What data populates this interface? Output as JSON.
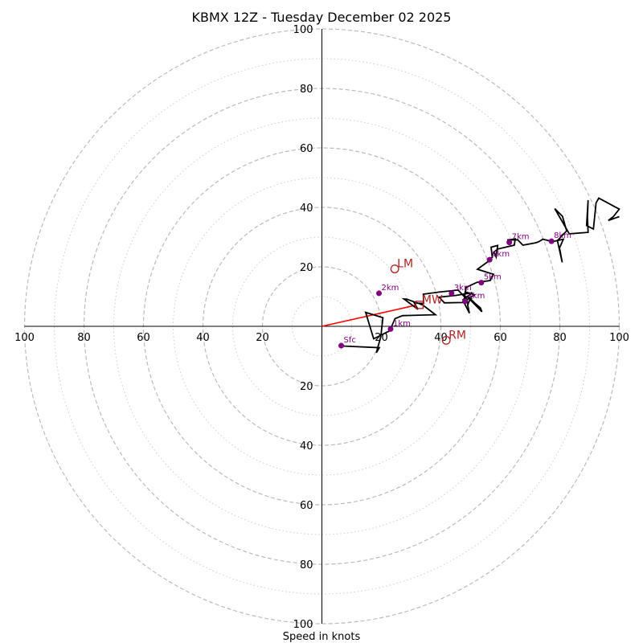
{
  "chart_data": {
    "type": "hodograph",
    "title": "KBMX 12Z - Tuesday December 02 2025",
    "xlabel": "Speed in knots",
    "ring_max": 100,
    "major_rings": [
      20,
      40,
      60,
      80,
      100
    ],
    "minor_rings": [
      10,
      30,
      50,
      70,
      90
    ],
    "axis_tick_labels": [
      "20",
      "40",
      "60",
      "80",
      "100"
    ],
    "colors": {
      "trace": "#000000",
      "height_marker": "#800080",
      "vector": "#ff0000",
      "motion": "#b22222",
      "major_ring": "#bbbbbb",
      "minor_ring": "#cccccc"
    },
    "trace": [
      [
        6.2,
        -6.6
      ],
      [
        19.3,
        -7.2
      ],
      [
        18.3,
        -8.9
      ],
      [
        19.8,
        -3.5
      ],
      [
        20.5,
        2.9
      ],
      [
        14.7,
        4.7
      ],
      [
        17.4,
        -4.2
      ],
      [
        22.8,
        -1.5
      ],
      [
        24.6,
        2.6
      ],
      [
        27.1,
        3.6
      ],
      [
        38.2,
        3.9
      ],
      [
        33.9,
        7.2
      ],
      [
        28.6,
        9.1
      ],
      [
        27.6,
        9.2
      ],
      [
        32.3,
        5.7
      ],
      [
        31.1,
        7.8
      ],
      [
        34.2,
        7.7
      ],
      [
        34.1,
        10.8
      ],
      [
        39.4,
        11.5
      ],
      [
        45.8,
        12.2
      ],
      [
        48.8,
        9.0
      ],
      [
        48.9,
        7.9
      ],
      [
        47.5,
        9.0
      ],
      [
        50.6,
        11.3
      ],
      [
        45.1,
        10.4
      ],
      [
        39.4,
        9.8
      ],
      [
        41.2,
        7.9
      ],
      [
        47.3,
        8.0
      ],
      [
        51.3,
        10.6
      ],
      [
        48.2,
        11.6
      ],
      [
        48.0,
        10.1
      ],
      [
        50.2,
        9.4
      ],
      [
        49.7,
        9.1
      ],
      [
        53.8,
        4.9
      ],
      [
        53.3,
        6.2
      ],
      [
        51.3,
        7.9
      ],
      [
        49.9,
        9.3
      ],
      [
        49.0,
        7.2
      ],
      [
        49.6,
        4.4
      ],
      [
        47.7,
        8.2
      ],
      [
        48.5,
        13.1
      ],
      [
        52.2,
        14.8
      ],
      [
        56.6,
        15.4
      ],
      [
        57.7,
        17.5
      ],
      [
        52.3,
        19.2
      ],
      [
        57.0,
        22.6
      ],
      [
        55.6,
        22.2
      ],
      [
        57.3,
        23.2
      ],
      [
        56.9,
        26.6
      ],
      [
        59.1,
        27.2
      ],
      [
        58.6,
        23.3
      ],
      [
        57.8,
        25.0
      ],
      [
        59.2,
        26.0
      ],
      [
        64.7,
        27.3
      ],
      [
        65.0,
        29.4
      ],
      [
        62.3,
        29.0
      ],
      [
        65.8,
        29.1
      ],
      [
        67.6,
        27.3
      ],
      [
        72.0,
        28.1
      ],
      [
        73.0,
        28.5
      ],
      [
        74.3,
        29.3
      ],
      [
        77.6,
        28.5
      ],
      [
        81.2,
        29.3
      ],
      [
        79.9,
        26.3
      ],
      [
        80.1,
        25.3
      ],
      [
        80.8,
        21.5
      ],
      [
        79.2,
        28.8
      ],
      [
        82.3,
        32.1
      ],
      [
        80.9,
        37.0
      ],
      [
        78.3,
        39.6
      ],
      [
        83.2,
        31.1
      ],
      [
        89.5,
        31.6
      ],
      [
        89.3,
        36.7
      ],
      [
        89.5,
        42.4
      ],
      [
        89.0,
        33.9
      ],
      [
        91.3,
        32.7
      ],
      [
        92.2,
        41.5
      ],
      [
        93.1,
        43.1
      ],
      [
        100.0,
        39.4
      ],
      [
        98.0,
        36.9
      ],
      [
        96.3,
        35.6
      ],
      [
        100.0,
        36.9
      ]
    ],
    "height_markers": [
      {
        "label": "Sfc",
        "u": 6.5,
        "v": -6.5
      },
      {
        "label": "1km",
        "u": 23.1,
        "v": -0.9
      },
      {
        "label": "2km",
        "u": 19.2,
        "v": 11.1
      },
      {
        "label": "3km",
        "u": 43.6,
        "v": 11.1
      },
      {
        "label": "4km",
        "u": 48.1,
        "v": 8.4
      },
      {
        "label": "5km",
        "u": 53.6,
        "v": 14.7
      },
      {
        "label": "6km",
        "u": 56.4,
        "v": 22.4
      },
      {
        "label": "7km",
        "u": 63.0,
        "v": 28.2
      },
      {
        "label": "8km",
        "u": 77.2,
        "v": 28.6
      }
    ],
    "mean_wind_vector": {
      "u": 31.6,
      "v": 7.1
    },
    "storm_motions": [
      {
        "label": "LM",
        "u": 24.5,
        "v": 19.3,
        "marker": "circle"
      },
      {
        "label": "MW",
        "u": 32.8,
        "v": 7.2,
        "marker": "square"
      },
      {
        "label": "RM",
        "u": 41.8,
        "v": -4.7,
        "marker": "circle"
      }
    ]
  }
}
